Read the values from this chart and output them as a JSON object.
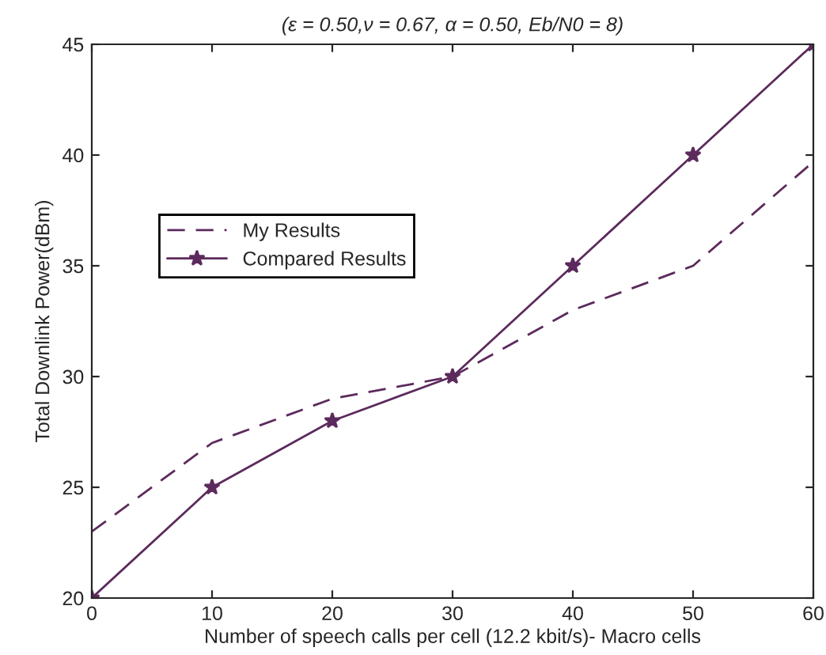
{
  "chart_data": {
    "type": "line",
    "title": "(ε = 0.50,ν = 0.67, α = 0.50, Eb/N0 = 8)",
    "xlabel": "Number of speech calls per cell (12.2 kbit/s)- Macro cells",
    "ylabel": "Total Downlink Power(dBm)",
    "x": [
      0,
      10,
      20,
      30,
      40,
      50,
      60
    ],
    "series": [
      {
        "name": "My Results",
        "color": "#5c2a5c",
        "values": [
          23,
          27,
          29,
          30,
          33,
          35,
          39.7
        ],
        "line_style": "dashed",
        "marker": "none"
      },
      {
        "name": "Compared Results",
        "color": "#5c2a5c",
        "values": [
          20,
          25,
          28,
          30,
          35,
          40,
          45
        ],
        "line_style": "solid",
        "marker": "star"
      }
    ],
    "xlim": [
      0,
      60
    ],
    "xticks": [
      0,
      10,
      20,
      30,
      40,
      50,
      60
    ],
    "ylim": [
      20,
      45
    ],
    "yticks": [
      20,
      25,
      30,
      35,
      40,
      45
    ],
    "grid": false,
    "legend": "upper left"
  }
}
